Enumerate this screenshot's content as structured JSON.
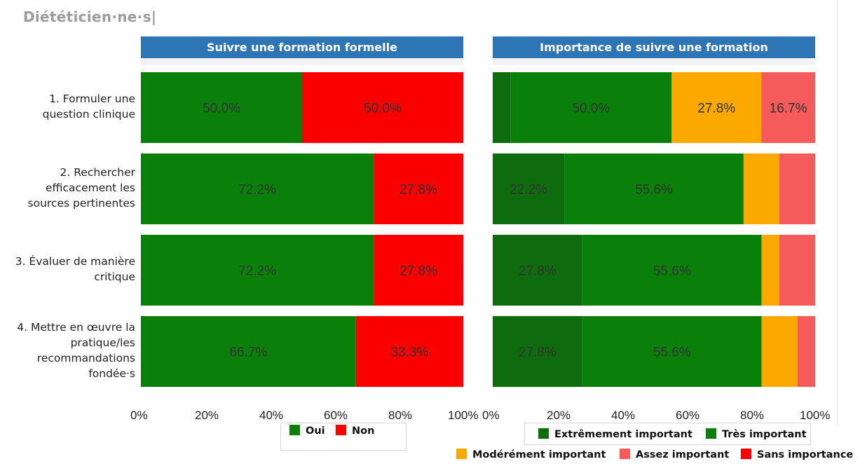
{
  "page_title": "Diététicien·ne·s|",
  "colors": {
    "oui": "#0a800a",
    "non": "#fa0000",
    "extremement": "#0e6b0e",
    "tres": "#0a800a",
    "modere": "#fba800",
    "assez": "#f65b5b",
    "sans": "#fa0000",
    "header": "#2e75b6"
  },
  "chart_data": [
    {
      "type": "bar",
      "orientation": "horizontal-stacked-100",
      "title": "Suivre une formation formelle",
      "categories": [
        "1. Formuler une question clinique",
        "2. Rechercher efficacement les sources pertinentes",
        "3. Évaluer de manière critique",
        "4. Mettre en œuvre la pratique/les recommandations fondée·s"
      ],
      "series": [
        {
          "name": "Oui",
          "values": [
            50.0,
            72.2,
            72.2,
            66.7
          ],
          "labels": [
            "50.0%",
            "72.2%",
            "72.2%",
            "66.7%"
          ]
        },
        {
          "name": "Non",
          "values": [
            50.0,
            27.8,
            27.8,
            33.3
          ],
          "labels": [
            "50.0%",
            "27.8%",
            "27.8%",
            "33.3%"
          ]
        }
      ],
      "xlim": [
        0,
        100
      ],
      "xticks": [
        "0%",
        "20%",
        "40%",
        "60%",
        "80%",
        "100%"
      ],
      "legend": "bottom"
    },
    {
      "type": "bar",
      "orientation": "horizontal-stacked-100",
      "title": "Importance de suivre une formation",
      "categories": [
        "1. Formuler une question clinique",
        "2. Rechercher efficacement les sources pertinentes",
        "3. Évaluer de manière critique",
        "4. Mettre en œuvre la pratique/les recommandations fondée·s"
      ],
      "series": [
        {
          "name": "Extrêmement important",
          "values": [
            5.5,
            22.2,
            27.8,
            27.8
          ],
          "labels": [
            "",
            "22.2%",
            "27.8%",
            "27.8%"
          ]
        },
        {
          "name": "Très important",
          "values": [
            50.0,
            55.6,
            55.6,
            55.6
          ],
          "labels": [
            "50.0%",
            "55.6%",
            "55.6%",
            "55.6%"
          ]
        },
        {
          "name": "Modérément important",
          "values": [
            27.8,
            11.1,
            5.5,
            11.1
          ],
          "labels": [
            "27.8%",
            "",
            "",
            ""
          ]
        },
        {
          "name": "Assez important",
          "values": [
            16.7,
            11.1,
            11.1,
            5.5
          ],
          "labels": [
            "16.7%",
            "",
            "",
            ""
          ]
        },
        {
          "name": "Sans importance",
          "values": [
            0,
            0,
            0,
            0
          ],
          "labels": [
            "",
            "",
            "",
            ""
          ]
        }
      ],
      "xlim": [
        0,
        100
      ],
      "xticks": [
        "0%",
        "20%",
        "40%",
        "60%",
        "80%",
        "100%"
      ],
      "legend": "bottom"
    }
  ],
  "category_lines": [
    [
      "1. Formuler une",
      "question clinique"
    ],
    [
      "2. Rechercher",
      "efficacement les",
      "sources pertinentes"
    ],
    [
      "3. Évaluer de manière",
      "critique"
    ],
    [
      "4. Mettre en œuvre la",
      "pratique/les",
      "recommandations",
      "fondée·s"
    ]
  ]
}
